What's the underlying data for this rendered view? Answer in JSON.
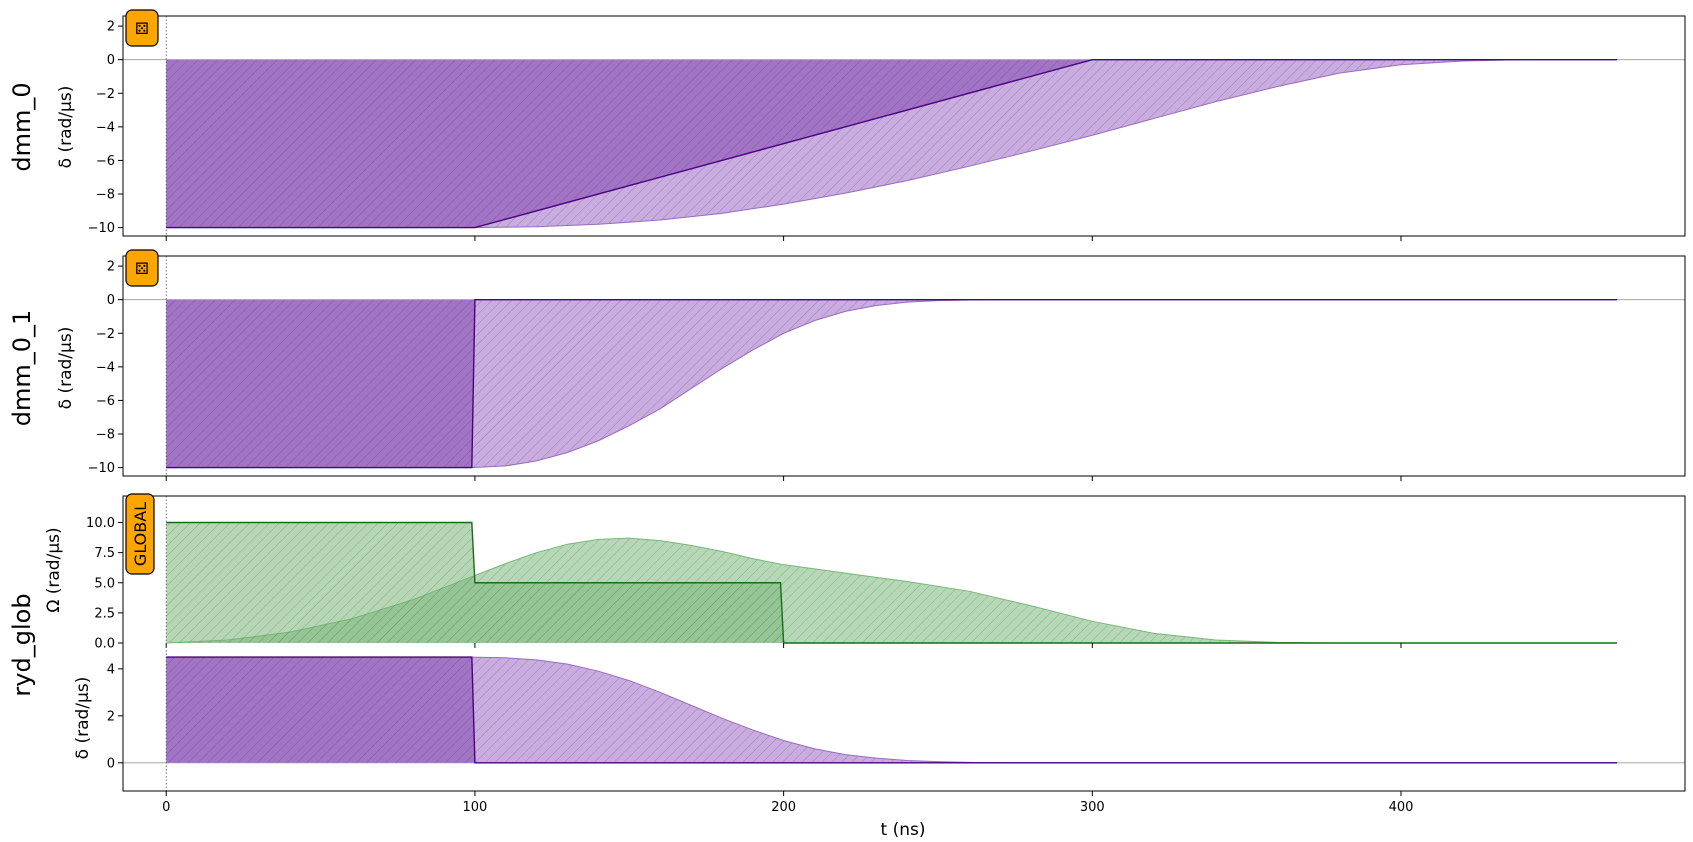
{
  "chart_data": [
    {
      "type": "area",
      "row_label": "dmm_0",
      "ylabel": "δ (rad/µs)",
      "ylim": [
        -10.5,
        2.6
      ],
      "yticks": [
        "2",
        "0",
        "−2",
        "−4",
        "−6",
        "−8",
        "−10"
      ],
      "ytick_values": [
        2,
        0,
        -2,
        -4,
        -6,
        -8,
        -10
      ],
      "badge": "⚄",
      "series": [
        {
          "kind": "programmed",
          "x": [
            0,
            100,
            300,
            470
          ],
          "y": [
            -10,
            -10,
            0,
            0
          ]
        },
        {
          "kind": "realized",
          "x": [
            0,
            100,
            120,
            140,
            160,
            180,
            200,
            220,
            240,
            260,
            280,
            300,
            320,
            340,
            360,
            380,
            400,
            420,
            440,
            470
          ],
          "y": [
            -10,
            -10,
            -9.95,
            -9.8,
            -9.55,
            -9.15,
            -8.6,
            -7.95,
            -7.2,
            -6.35,
            -5.45,
            -4.5,
            -3.5,
            -2.5,
            -1.6,
            -0.8,
            -0.3,
            -0.08,
            0,
            0
          ]
        }
      ]
    },
    {
      "type": "area",
      "row_label": "dmm_0_1",
      "ylabel": "δ (rad/µs)",
      "ylim": [
        -10.5,
        2.6
      ],
      "yticks": [
        "2",
        "0",
        "−2",
        "−4",
        "−6",
        "−8",
        "−10"
      ],
      "ytick_values": [
        2,
        0,
        -2,
        -4,
        -6,
        -8,
        -10
      ],
      "badge": "⚄",
      "series": [
        {
          "kind": "programmed",
          "x": [
            0,
            99,
            100,
            470
          ],
          "y": [
            -10,
            -10,
            0,
            0
          ]
        },
        {
          "kind": "realized",
          "x": [
            0,
            99,
            110,
            120,
            130,
            140,
            150,
            160,
            170,
            180,
            190,
            200,
            210,
            220,
            230,
            240,
            250,
            260,
            270,
            280,
            470
          ],
          "y": [
            -10,
            -10,
            -9.9,
            -9.6,
            -9.1,
            -8.4,
            -7.5,
            -6.5,
            -5.3,
            -4.1,
            -3.0,
            -2.0,
            -1.25,
            -0.7,
            -0.35,
            -0.15,
            -0.06,
            -0.02,
            0,
            0,
            0
          ]
        }
      ]
    },
    {
      "type": "area",
      "row_label": "ryd_glob",
      "ylabel": "Ω (rad/µs)",
      "ylim": [
        0,
        12.2
      ],
      "yticks": [
        "10.0",
        "7.5",
        "5.0",
        "2.5",
        "0.0"
      ],
      "ytick_values": [
        10,
        7.5,
        5,
        2.5,
        0
      ],
      "badge": "GLOBAL",
      "series": [
        {
          "kind": "programmed",
          "x": [
            0,
            99,
            100,
            199,
            200,
            470
          ],
          "y": [
            10,
            10,
            5,
            5,
            0,
            0
          ]
        },
        {
          "kind": "realized",
          "x": [
            0,
            20,
            40,
            60,
            80,
            90,
            100,
            110,
            120,
            130,
            140,
            150,
            160,
            170,
            180,
            190,
            200,
            220,
            240,
            260,
            280,
            300,
            320,
            340,
            360,
            380,
            400,
            470
          ],
          "y": [
            0,
            0.25,
            0.9,
            2.0,
            3.6,
            4.6,
            5.6,
            6.6,
            7.5,
            8.2,
            8.6,
            8.7,
            8.5,
            8.1,
            7.6,
            7.0,
            6.5,
            5.8,
            5.1,
            4.3,
            3.1,
            1.8,
            0.8,
            0.25,
            0.05,
            0,
            0,
            0
          ]
        }
      ]
    },
    {
      "type": "area",
      "row_label": "",
      "ylabel": "δ (rad/µs)",
      "ylim": [
        -1.2,
        5.1
      ],
      "yticks": [
        "4",
        "2",
        "0"
      ],
      "ytick_values": [
        4,
        2,
        0
      ],
      "series": [
        {
          "kind": "programmed",
          "x": [
            0,
            99,
            100,
            470
          ],
          "y": [
            4.5,
            4.5,
            0,
            0
          ]
        },
        {
          "kind": "realized",
          "x": [
            0,
            99,
            110,
            120,
            130,
            140,
            150,
            160,
            170,
            180,
            190,
            200,
            210,
            220,
            230,
            240,
            250,
            260,
            270,
            280,
            300,
            470
          ],
          "y": [
            4.5,
            4.5,
            4.47,
            4.38,
            4.2,
            3.9,
            3.5,
            3.0,
            2.45,
            1.9,
            1.4,
            0.95,
            0.6,
            0.35,
            0.2,
            0.1,
            0.05,
            0.02,
            0,
            0,
            0,
            0
          ]
        }
      ]
    }
  ],
  "x_axis": {
    "label": "t (ns)",
    "xlim": [
      -14,
      492
    ],
    "ticks": [
      "0",
      "100",
      "200",
      "300",
      "400"
    ],
    "tick_values": [
      0,
      100,
      200,
      300,
      400
    ]
  },
  "colors": {
    "purple_line": "#4b0082",
    "purple_fill": "#9b6ac0",
    "purple_fill_light": "#c6a9dc",
    "green_line": "#1a6b1a",
    "green_fill": "#7ab57a",
    "green_fill_light": "#b3d6b3",
    "badge_bg": "#ffa500"
  }
}
